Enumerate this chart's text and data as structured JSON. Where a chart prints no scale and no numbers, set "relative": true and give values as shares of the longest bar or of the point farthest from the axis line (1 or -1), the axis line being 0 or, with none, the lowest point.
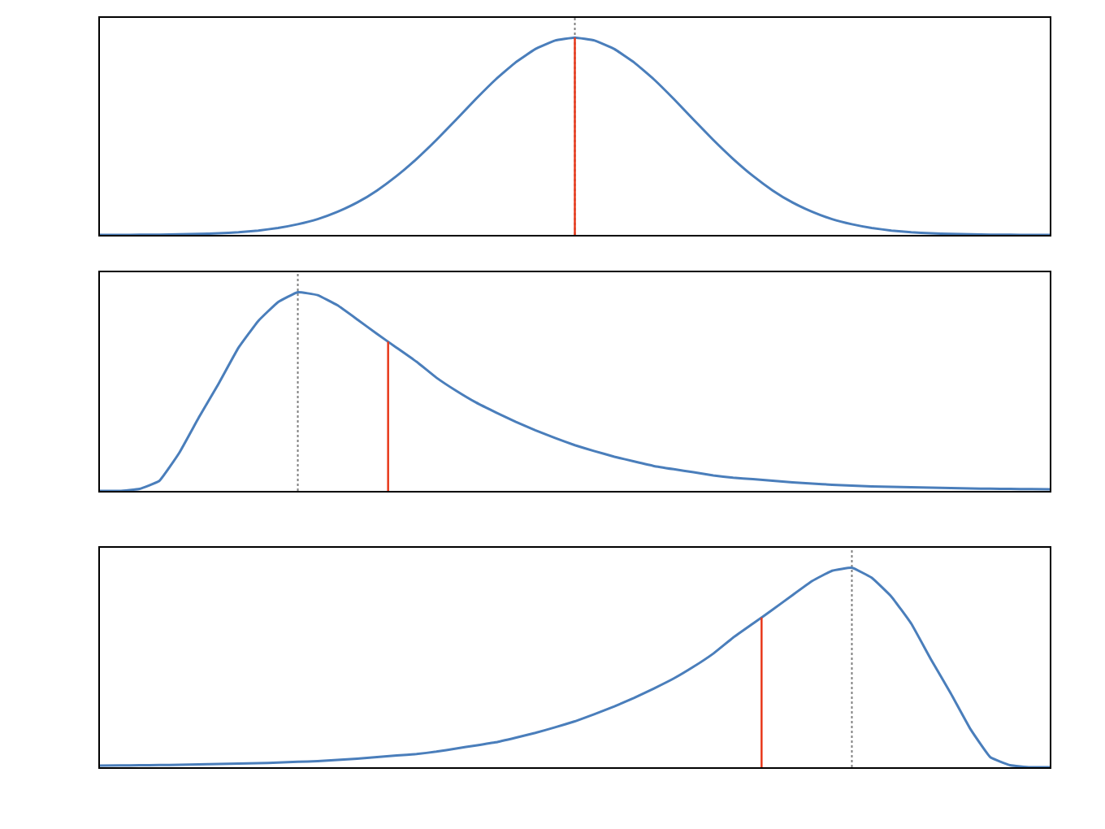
{
  "chart_data": [
    {
      "type": "line",
      "relative": true,
      "categories": [
        null,
        null,
        null,
        null,
        null,
        null,
        null,
        null,
        null,
        null,
        null,
        null,
        null,
        null,
        null,
        null,
        null,
        null,
        null,
        null,
        null,
        null,
        null,
        null,
        null,
        null,
        null,
        null,
        null,
        null,
        null,
        null,
        null,
        null,
        null,
        null,
        null,
        null,
        null,
        null,
        null,
        null,
        null,
        null,
        null,
        null,
        null,
        null,
        null
      ],
      "series": [
        {
          "color": "#4a7ebb",
          "values": [
            0,
            0,
            0.001,
            0.001,
            0.003,
            0.005,
            0.008,
            0.013,
            0.022,
            0.035,
            0.054,
            0.08,
            0.117,
            0.164,
            0.225,
            0.299,
            0.385,
            0.481,
            0.584,
            0.689,
            0.788,
            0.874,
            0.942,
            0.985,
            1,
            0.985,
            0.942,
            0.874,
            0.788,
            0.689,
            0.584,
            0.481,
            0.385,
            0.299,
            0.225,
            0.164,
            0.117,
            0.08,
            0.054,
            0.035,
            0.022,
            0.013,
            0.008,
            0.005,
            0.003,
            0.001,
            0.001,
            0,
            0
          ]
        }
      ]
    },
    {
      "type": "line",
      "relative": true,
      "categories": [
        null,
        null,
        null,
        null,
        null,
        null,
        null,
        null,
        null,
        null,
        null,
        null,
        null,
        null,
        null,
        null,
        null,
        null,
        null,
        null,
        null,
        null,
        null,
        null,
        null,
        null,
        null,
        null,
        null,
        null,
        null,
        null,
        null,
        null,
        null,
        null,
        null,
        null,
        null,
        null,
        null,
        null,
        null,
        null,
        null,
        null,
        null,
        null,
        null
      ],
      "series": [
        {
          "color": "#4a7ebb",
          "values": [
            0,
            0,
            0.01,
            0.05,
            0.19,
            0.37,
            0.54,
            0.72,
            0.855,
            0.95,
            1,
            0.985,
            0.934,
            0.863,
            0.79,
            0.72,
            0.65,
            0.57,
            0.504,
            0.445,
            0.395,
            0.348,
            0.305,
            0.266,
            0.23,
            0.2,
            0.172,
            0.148,
            0.125,
            0.109,
            0.094,
            0.078,
            0.066,
            0.059,
            0.051,
            0.043,
            0.037,
            0.031,
            0.027,
            0.023,
            0.02,
            0.018,
            0.016,
            0.014,
            0.012,
            0.011,
            0.01,
            0.009,
            0.008
          ]
        }
      ]
    },
    {
      "type": "line",
      "relative": true,
      "categories": [
        null,
        null,
        null,
        null,
        null,
        null,
        null,
        null,
        null,
        null,
        null,
        null,
        null,
        null,
        null,
        null,
        null,
        null,
        null,
        null,
        null,
        null,
        null,
        null,
        null,
        null,
        null,
        null,
        null,
        null,
        null,
        null,
        null,
        null,
        null,
        null,
        null,
        null,
        null,
        null,
        null,
        null,
        null,
        null,
        null,
        null,
        null,
        null,
        null
      ],
      "series": [
        {
          "color": "#4a7ebb",
          "values": [
            0.008,
            0.009,
            0.01,
            0.011,
            0.012,
            0.014,
            0.016,
            0.018,
            0.02,
            0.023,
            0.027,
            0.031,
            0.037,
            0.043,
            0.051,
            0.059,
            0.066,
            0.078,
            0.094,
            0.109,
            0.125,
            0.148,
            0.172,
            0.2,
            0.23,
            0.266,
            0.305,
            0.348,
            0.395,
            0.445,
            0.504,
            0.57,
            0.65,
            0.72,
            0.79,
            0.863,
            0.934,
            0.985,
            1,
            0.95,
            0.855,
            0.72,
            0.54,
            0.37,
            0.19,
            0.05,
            0.01,
            0,
            0
          ]
        }
      ]
    }
  ]
}
